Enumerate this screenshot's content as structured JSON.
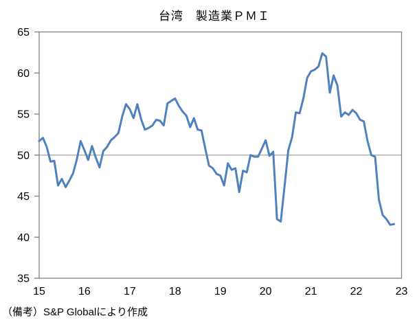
{
  "title": "台湾　製造業ＰＭＩ",
  "footnote": "（備考）S&P Globalにより作成",
  "colors": {
    "line": "#4F81BD",
    "axis": "#808080",
    "gridline": "#A6A6A6",
    "text": "#000000",
    "background": "#FFFFFF"
  },
  "chart_data": {
    "type": "line",
    "title": "台湾　製造業ＰＭＩ",
    "series_name": "台湾 製造業PMI",
    "source_note": "（備考）S&P Globalにより作成",
    "x_start": "2015-01",
    "x_end": "2022-11",
    "x_axis_span_months": 96,
    "x_tick_labels": [
      "15",
      "16",
      "17",
      "18",
      "19",
      "20",
      "21",
      "22",
      "23"
    ],
    "y_ticks": [
      65,
      60,
      55,
      50,
      45,
      40,
      35
    ],
    "ylim": [
      35,
      65
    ],
    "reference_line": 50,
    "grid": "horizontal line at 50 only",
    "legend": "none",
    "values": [
      51.7,
      52.1,
      51.0,
      49.2,
      49.3,
      46.3,
      47.1,
      46.1,
      46.9,
      47.8,
      49.5,
      51.7,
      50.6,
      49.4,
      51.1,
      49.7,
      48.5,
      50.5,
      51.0,
      51.8,
      52.2,
      52.7,
      54.7,
      56.2,
      55.6,
      54.5,
      56.2,
      54.4,
      53.1,
      53.3,
      53.6,
      54.3,
      54.2,
      53.6,
      56.3,
      56.6,
      56.9,
      56.0,
      55.3,
      54.8,
      53.4,
      54.5,
      53.1,
      53.0,
      50.8,
      48.7,
      48.4,
      47.7,
      47.5,
      46.3,
      49.0,
      48.2,
      48.4,
      45.5,
      48.1,
      47.9,
      50.0,
      49.8,
      49.8,
      50.8,
      51.8,
      49.9,
      50.4,
      42.2,
      41.9,
      46.2,
      50.6,
      52.2,
      55.2,
      55.1,
      56.9,
      59.4,
      60.2,
      60.4,
      60.8,
      62.4,
      62.0,
      57.6,
      59.7,
      58.5,
      54.7,
      55.2,
      54.9,
      55.5,
      55.1,
      54.3,
      54.1,
      51.7,
      50.0,
      49.8,
      44.6,
      42.7,
      42.2,
      41.5,
      41.6
    ]
  }
}
